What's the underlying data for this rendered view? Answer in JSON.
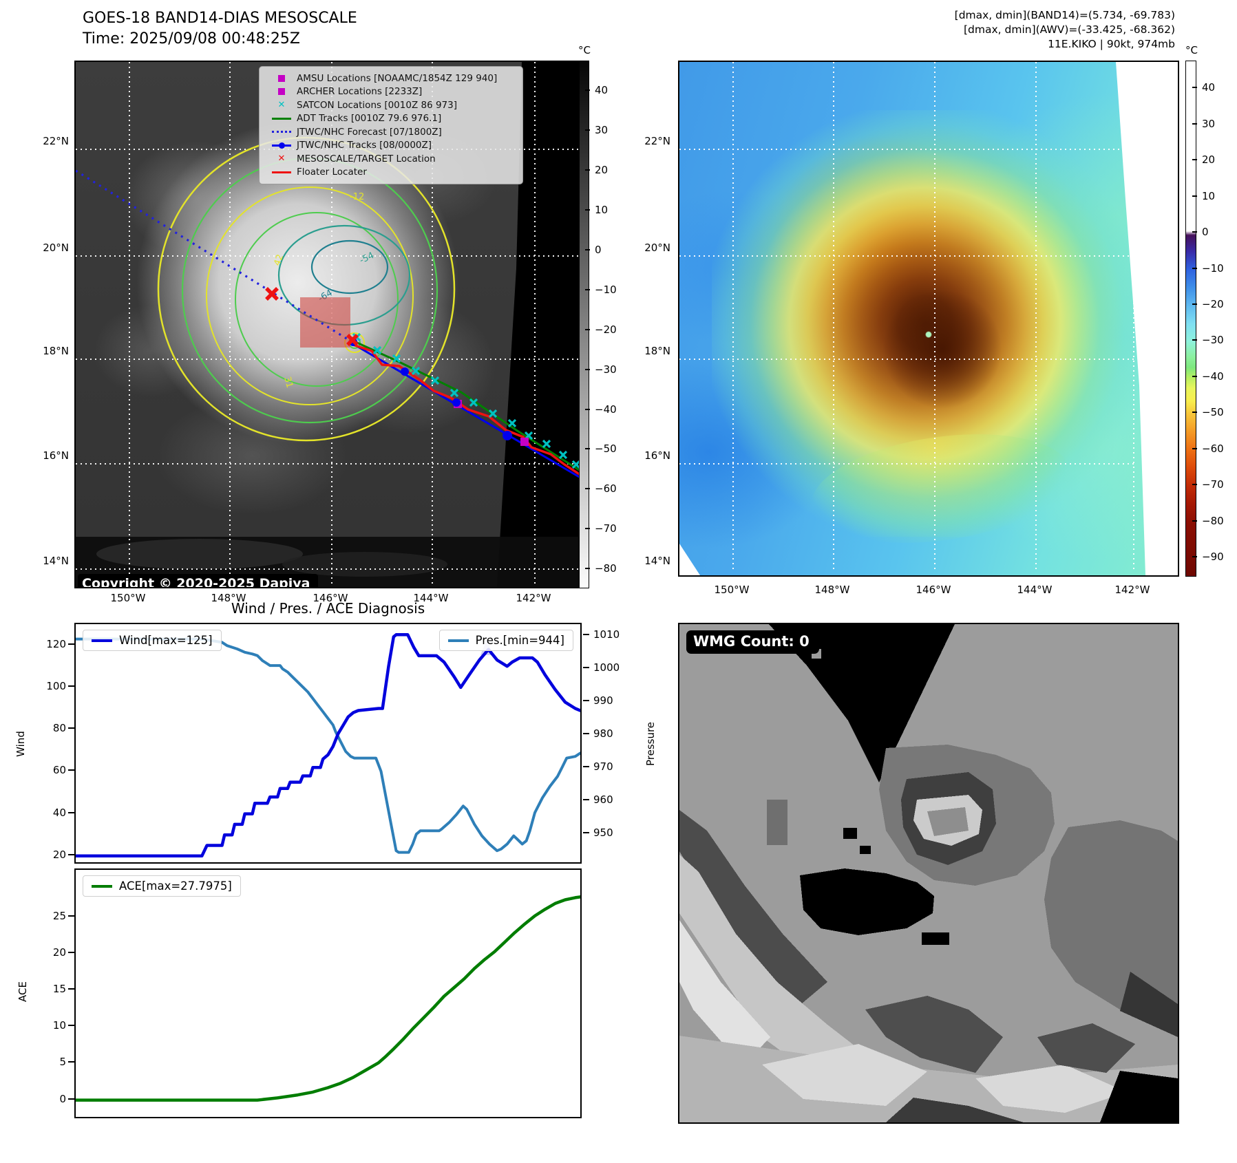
{
  "header": {
    "title": "GOES-18 BAND14-DIAS MESOSCALE",
    "time": "Time: 2025/09/08 00:48:25Z",
    "annotation_lines": [
      "[dmax, dmin](BAND14)=(5.734, -69.783)",
      "[dmax, dmin](AWV)=(-33.425, -68.362)",
      "11E.KIKO | 90kt, 974mb"
    ]
  },
  "left_map": {
    "legend_items": [
      {
        "marker": "square",
        "color": "#c400c4",
        "label": "AMSU Locations [NOAAMC/1854Z 129 940]"
      },
      {
        "marker": "square",
        "color": "#c400c4",
        "label": "ARCHER Locations [2233Z]"
      },
      {
        "marker": "x",
        "color": "#00c2c2",
        "label": "SATCON Locations [0010Z 86 973]"
      },
      {
        "marker": "line",
        "color": "#008000",
        "label": "ADT Tracks [0010Z 79.6 976.1]"
      },
      {
        "marker": "dotted",
        "color": "#2222dd",
        "label": "JTWC/NHC Forecast [07/1800Z]"
      },
      {
        "marker": "linedot",
        "color": "#0000ee",
        "label": "JTWC/NHC Tracks [08/0000Z]"
      },
      {
        "marker": "x",
        "color": "#ee1111",
        "label": "MESOSCALE/TARGET Location"
      },
      {
        "marker": "line",
        "color": "#ee1111",
        "label": "Floater Locater"
      }
    ],
    "copyright": "Copyright © 2020-2025 Dapiya",
    "lon_ticks": [
      "150°W",
      "148°W",
      "146°W",
      "144°W",
      "142°W"
    ],
    "lat_ticks": [
      "22°N",
      "20°N",
      "18°N",
      "16°N",
      "14°N"
    ],
    "contour_labels": [
      {
        "text": "-12"
      },
      {
        "text": "42"
      },
      {
        "text": "-54"
      },
      {
        "text": "-64"
      },
      {
        "text": "31"
      }
    ],
    "colorbar": {
      "unit": "°C",
      "ticks": [
        40,
        30,
        20,
        10,
        0,
        -10,
        -20,
        -30,
        -40,
        -50,
        -60,
        -70,
        -80
      ]
    }
  },
  "right_map": {
    "lon_ticks": [
      "150°W",
      "148°W",
      "146°W",
      "144°W",
      "142°W"
    ],
    "lat_ticks": [
      "22°N",
      "20°N",
      "18°N",
      "16°N",
      "14°N"
    ],
    "colorbar": {
      "unit": "°C",
      "ticks": [
        40,
        30,
        20,
        10,
        0,
        -10,
        -20,
        -30,
        -40,
        -50,
        -60,
        -70,
        -80,
        -90
      ]
    }
  },
  "diagnosis": {
    "title": "Wind / Pres. / ACE Diagnosis",
    "wind_legend": "Wind[max=125]",
    "pres_legend": "Pres.[min=944]",
    "ace_legend": "ACE[max=27.7975]",
    "ylabel_wind": "Wind",
    "ylabel_pressure": "Pressure",
    "ylabel_ace": "ACE",
    "wind_ticks": [
      120,
      100,
      80,
      60,
      40,
      20
    ],
    "pressure_ticks": [
      1010,
      1000,
      990,
      980,
      970,
      960,
      950
    ],
    "ace_ticks": [
      25,
      20,
      15,
      10,
      5,
      0
    ]
  },
  "wmg": {
    "count_label": "WMG Count: 0"
  },
  "chart_data": [
    {
      "type": "line",
      "title": "Wind / Pres. / ACE Diagnosis",
      "x_unit": "percent_of_axis",
      "series": [
        {
          "name": "Wind[max=125]",
          "color": "#0202dd",
          "axis": "left",
          "ylabel": "Wind",
          "points": [
            [
              0,
              20
            ],
            [
              25,
              20
            ],
            [
              26,
              25
            ],
            [
              29,
              25
            ],
            [
              29.5,
              30
            ],
            [
              31,
              30
            ],
            [
              31.5,
              35
            ],
            [
              33,
              35
            ],
            [
              33.5,
              40
            ],
            [
              35,
              40
            ],
            [
              35.5,
              45
            ],
            [
              38,
              45
            ],
            [
              38.5,
              48
            ],
            [
              40,
              48
            ],
            [
              40.5,
              52
            ],
            [
              42,
              52
            ],
            [
              42.5,
              55
            ],
            [
              44.5,
              55
            ],
            [
              45,
              58
            ],
            [
              46.5,
              58
            ],
            [
              47,
              62
            ],
            [
              48.5,
              62
            ],
            [
              49,
              66
            ],
            [
              50,
              68
            ],
            [
              51,
              72
            ],
            [
              52,
              78
            ],
            [
              53,
              82
            ],
            [
              54,
              86
            ],
            [
              55,
              88
            ],
            [
              56,
              89
            ],
            [
              60,
              90
            ],
            [
              60.8,
              90
            ],
            [
              62,
              110
            ],
            [
              63,
              124
            ],
            [
              63.5,
              125
            ],
            [
              65.8,
              125
            ],
            [
              67,
              119
            ],
            [
              68,
              115
            ],
            [
              71.5,
              115
            ],
            [
              73,
              112
            ],
            [
              75,
              105
            ],
            [
              76.3,
              100
            ],
            [
              78,
              106
            ],
            [
              80,
              113
            ],
            [
              81.8,
              118
            ],
            [
              83.5,
              113
            ],
            [
              85.5,
              110
            ],
            [
              86.5,
              112
            ],
            [
              88,
              114
            ],
            [
              90.5,
              114
            ],
            [
              91.5,
              112
            ],
            [
              93,
              106
            ],
            [
              95,
              99
            ],
            [
              97,
              93
            ],
            [
              99,
              90
            ],
            [
              100,
              89
            ]
          ]
        },
        {
          "name": "Pres.[min=944]",
          "color": "#2e7fb8",
          "axis": "right",
          "ylabel": "Pressure",
          "points": [
            [
              0,
              1009
            ],
            [
              25,
              1009
            ],
            [
              27,
              1008.5
            ],
            [
              29,
              1008
            ],
            [
              30,
              1007
            ],
            [
              32,
              1006
            ],
            [
              33.5,
              1005
            ],
            [
              35,
              1004.5
            ],
            [
              36,
              1004
            ],
            [
              37,
              1002.5
            ],
            [
              38.5,
              1001
            ],
            [
              40.5,
              1001
            ],
            [
              41,
              1000
            ],
            [
              42,
              999
            ],
            [
              43,
              997.5
            ],
            [
              44,
              996
            ],
            [
              45,
              994.5
            ],
            [
              46,
              993
            ],
            [
              47,
              991
            ],
            [
              48,
              989
            ],
            [
              49,
              987
            ],
            [
              50,
              985
            ],
            [
              51,
              983
            ],
            [
              51.5,
              981
            ],
            [
              52.5,
              978
            ],
            [
              53.5,
              975
            ],
            [
              54.5,
              973.5
            ],
            [
              55.2,
              973
            ],
            [
              59.5,
              973
            ],
            [
              60.5,
              969
            ],
            [
              61.5,
              961
            ],
            [
              62.5,
              953
            ],
            [
              63.5,
              945
            ],
            [
              64,
              944.5
            ],
            [
              66,
              944.5
            ],
            [
              66.8,
              947
            ],
            [
              67.5,
              950
            ],
            [
              68.3,
              951
            ],
            [
              72,
              951
            ],
            [
              72.5,
              951.5
            ],
            [
              74,
              953.5
            ],
            [
              75.5,
              956
            ],
            [
              76.8,
              958.5
            ],
            [
              77.5,
              957.5
            ],
            [
              79,
              953
            ],
            [
              80.5,
              949.5
            ],
            [
              82,
              947
            ],
            [
              83.5,
              945
            ],
            [
              84.3,
              945.5
            ],
            [
              85.5,
              947
            ],
            [
              86.8,
              949.5
            ],
            [
              87.5,
              948.5
            ],
            [
              88.5,
              947
            ],
            [
              89.3,
              948
            ],
            [
              90,
              951
            ],
            [
              91,
              956.5
            ],
            [
              92.5,
              961
            ],
            [
              94,
              964.5
            ],
            [
              95.5,
              967.5
            ],
            [
              96.5,
              970.5
            ],
            [
              97.3,
              973
            ],
            [
              99,
              973.5
            ],
            [
              100,
              974.5
            ]
          ]
        }
      ],
      "ylim_left": [
        17,
        130
      ],
      "ylim_right": [
        941.5,
        1013.5
      ],
      "yticks_left": [
        120,
        100,
        80,
        60,
        40,
        20
      ],
      "yticks_right": [
        1010,
        1000,
        990,
        980,
        970,
        960,
        950
      ],
      "grid": false,
      "legend_position": "upper-left and upper-right"
    },
    {
      "type": "line",
      "title": "ACE",
      "x_unit": "percent_of_axis",
      "series": [
        {
          "name": "ACE[max=27.7975]",
          "color": "#007d00",
          "ylabel": "ACE",
          "points": [
            [
              0,
              0
            ],
            [
              36,
              0
            ],
            [
              40,
              0.3
            ],
            [
              44,
              0.7
            ],
            [
              47,
              1.1
            ],
            [
              50,
              1.7
            ],
            [
              52.5,
              2.3
            ],
            [
              55,
              3.1
            ],
            [
              57.5,
              4.1
            ],
            [
              60,
              5.1
            ],
            [
              61.5,
              6
            ],
            [
              63,
              7
            ],
            [
              65,
              8.4
            ],
            [
              67,
              9.9
            ],
            [
              69,
              11.3
            ],
            [
              71,
              12.7
            ],
            [
              73,
              14.2
            ],
            [
              75,
              15.4
            ],
            [
              77,
              16.6
            ],
            [
              79,
              18
            ],
            [
              81,
              19.2
            ],
            [
              83,
              20.3
            ],
            [
              85,
              21.6
            ],
            [
              87,
              22.9
            ],
            [
              89,
              24.1
            ],
            [
              91,
              25.2
            ],
            [
              93,
              26.1
            ],
            [
              95,
              26.9
            ],
            [
              97,
              27.4
            ],
            [
              99,
              27.7
            ],
            [
              100,
              27.8
            ]
          ]
        }
      ],
      "ylim": [
        -2.3,
        31.5
      ],
      "yticks": [
        0,
        5,
        10,
        15,
        20,
        25
      ],
      "grid": false,
      "legend_position": "upper-left"
    }
  ]
}
